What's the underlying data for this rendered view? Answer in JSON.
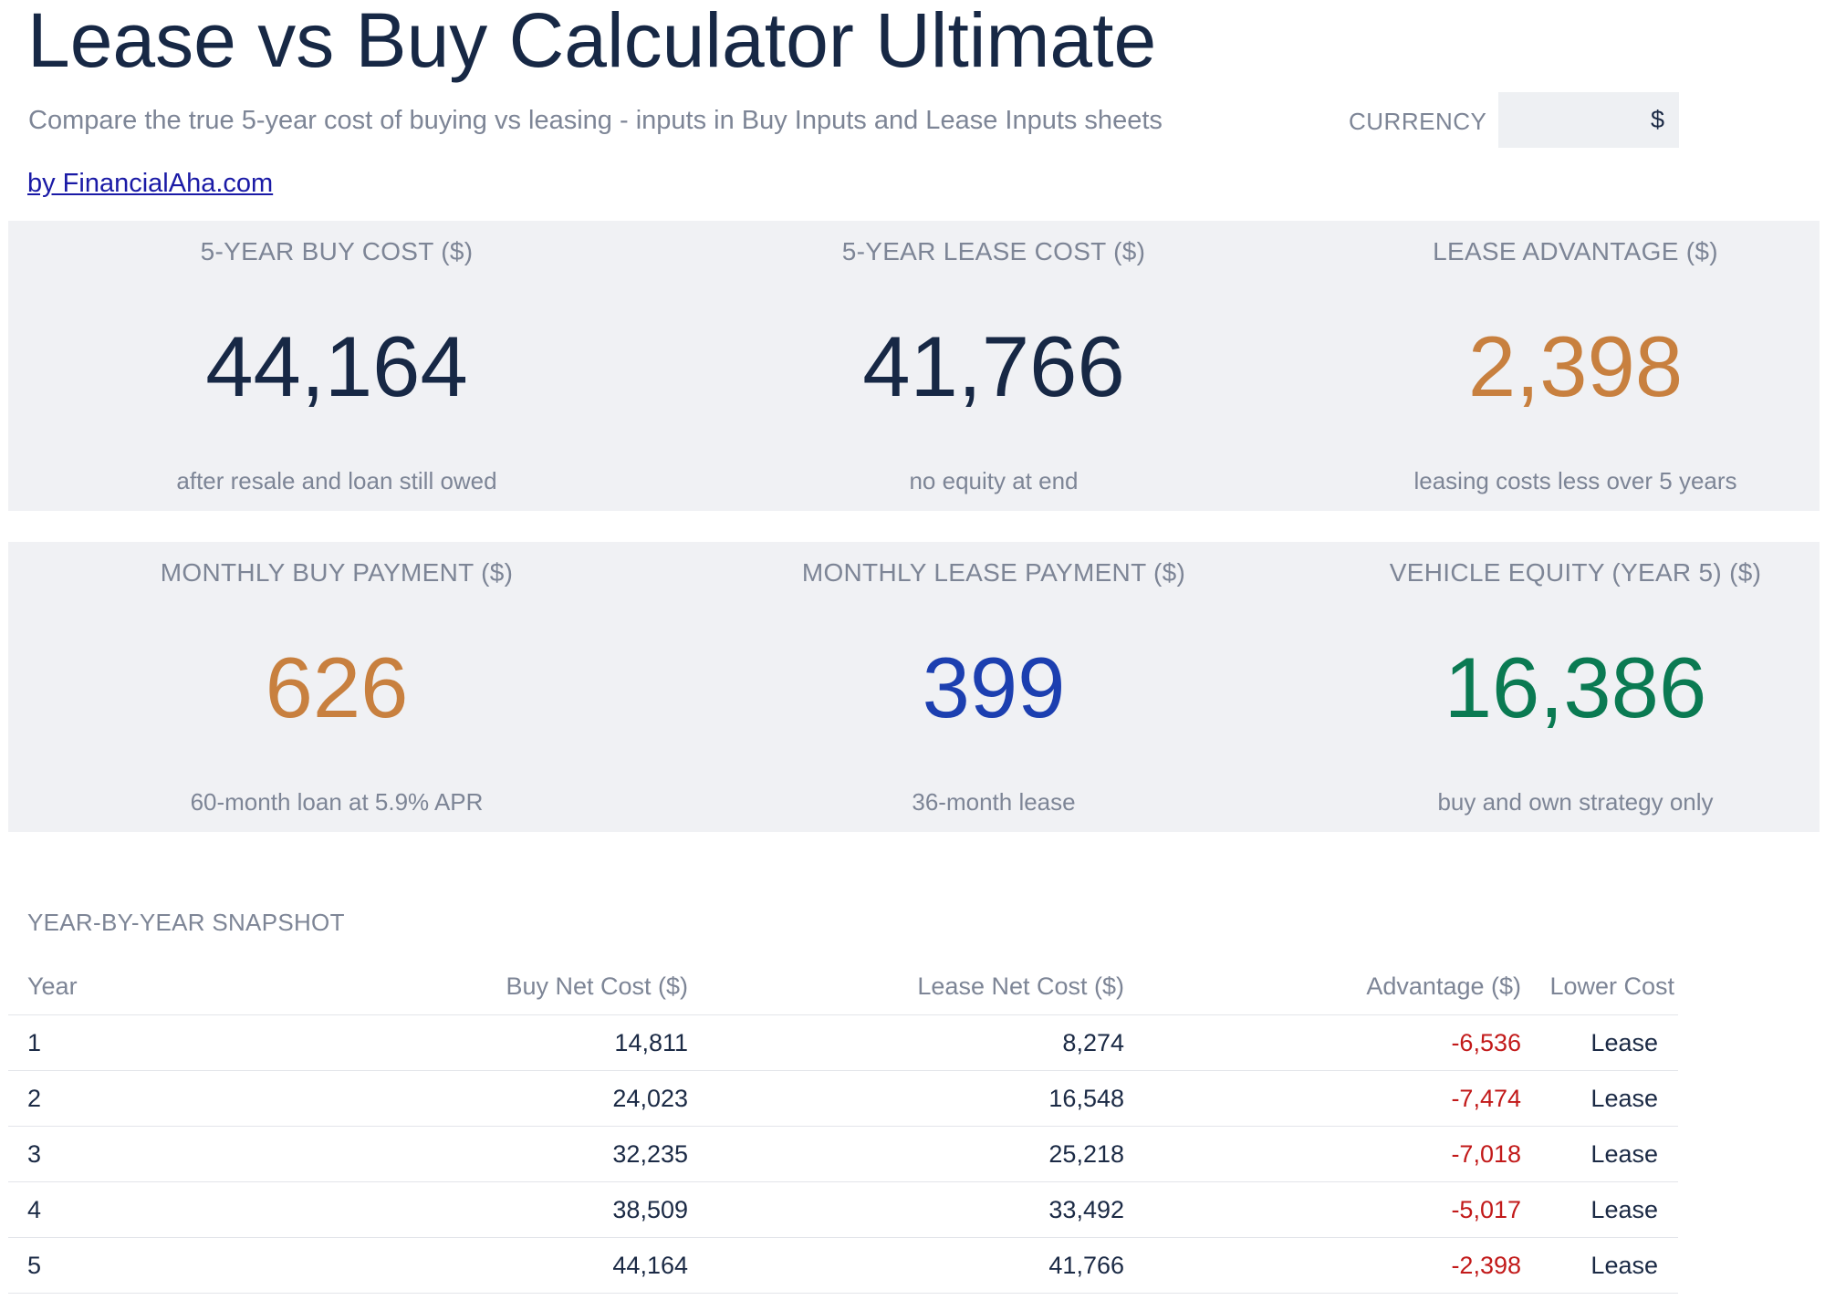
{
  "header": {
    "title": "Lease vs Buy Calculator Ultimate",
    "subtitle": "Compare the true 5-year cost of buying vs leasing - inputs in Buy Inputs and Lease Inputs sheets",
    "currency_label": "CURRENCY",
    "currency_value": "$",
    "credit_link": "by FinancialAha.com"
  },
  "kpi_row_1": [
    {
      "label": "5-YEAR BUY COST ($)",
      "value": "44,164",
      "note": "after resale and loan still owed",
      "color": "#172845"
    },
    {
      "label": "5-YEAR LEASE COST ($)",
      "value": "41,766",
      "note": "no equity at end",
      "color": "#172845"
    },
    {
      "label": "LEASE ADVANTAGE ($)",
      "value": "2,398",
      "note": "leasing costs less over 5 years",
      "color": "#c8803f"
    }
  ],
  "kpi_row_2": [
    {
      "label": "MONTHLY BUY PAYMENT ($)",
      "value": "626",
      "note": "60-month loan at 5.9% APR",
      "color": "#c8803f"
    },
    {
      "label": "MONTHLY LEASE PAYMENT ($)",
      "value": "399",
      "note": "36-month lease",
      "color": "#1c3fb0"
    },
    {
      "label": "VEHICLE EQUITY (YEAR 5) ($)",
      "value": "16,386",
      "note": "buy and own strategy only",
      "color": "#0a7a52"
    }
  ],
  "snapshot": {
    "heading": "YEAR-BY-YEAR SNAPSHOT",
    "columns": [
      "Year",
      "Buy Net Cost ($)",
      "Lease Net Cost ($)",
      "Advantage ($)",
      "Lower Cost"
    ],
    "rows": [
      [
        "1",
        "14,811",
        "8,274",
        "-6,536",
        "Lease"
      ],
      [
        "2",
        "24,023",
        "16,548",
        "-7,474",
        "Lease"
      ],
      [
        "3",
        "32,235",
        "25,218",
        "-7,018",
        "Lease"
      ],
      [
        "4",
        "38,509",
        "33,492",
        "-5,017",
        "Lease"
      ],
      [
        "5",
        "44,164",
        "41,766",
        "-2,398",
        "Lease"
      ]
    ],
    "negative_color": "#c21a1a"
  }
}
